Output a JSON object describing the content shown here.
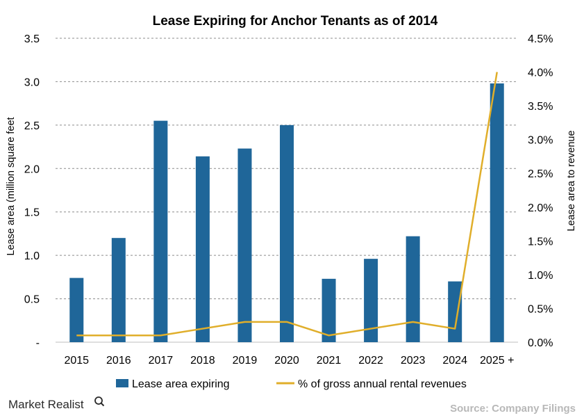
{
  "chart_data": {
    "type": "bar",
    "title": "Lease Expiring  for Anchor  Tenants  as of 2014",
    "categories": [
      "2015",
      "2016",
      "2017",
      "2018",
      "2019",
      "2020",
      "2021",
      "2022",
      "2023",
      "2024",
      "2025 +"
    ],
    "series": [
      {
        "name": "Lease area expiring",
        "type": "bar",
        "axis": "left",
        "color": "#1f6699",
        "values": [
          0.74,
          1.2,
          2.55,
          2.14,
          2.23,
          2.5,
          0.73,
          0.96,
          1.22,
          0.7,
          2.98
        ]
      },
      {
        "name": "% of gross annual rental revenues",
        "type": "line",
        "axis": "right",
        "color": "#e0ae2a",
        "values": [
          0.1,
          0.1,
          0.1,
          0.2,
          0.3,
          0.3,
          0.1,
          0.2,
          0.3,
          0.2,
          4.0
        ]
      }
    ],
    "ylabel": "Lease area (million square feet",
    "y2label": "Lease area to revenue",
    "ylim": [
      0,
      3.5
    ],
    "y2lim": [
      0,
      4.5
    ],
    "yticks": [
      "-",
      "0.5",
      "1.0",
      "1.5",
      "2.0",
      "2.5",
      "3.0",
      "3.5"
    ],
    "y2ticks": [
      "0.0%",
      "0.5%",
      "1.0%",
      "1.5%",
      "2.0%",
      "2.5%",
      "3.0%",
      "3.5%",
      "4.0%",
      "4.5%"
    ],
    "grid": true,
    "legend_position": "bottom"
  },
  "branding": {
    "logo_text": "Market Realist",
    "source": "Source: Company Filings"
  }
}
